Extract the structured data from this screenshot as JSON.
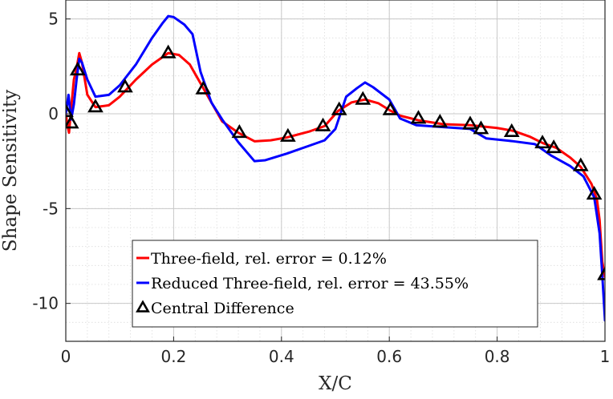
{
  "chart_data": {
    "type": "line",
    "title": "",
    "xlabel": "X/C",
    "ylabel": "Shape Sensitivity",
    "xlim": [
      0,
      1
    ],
    "ylim": [
      -12,
      6
    ],
    "x_ticks": [
      0,
      0.2,
      0.4,
      0.6,
      0.8,
      1
    ],
    "x_tick_labels": [
      "0",
      "0.2",
      "0.4",
      "0.6",
      "0.8",
      "1"
    ],
    "y_ticks": [
      5,
      0,
      -5,
      -10
    ],
    "y_tick_labels": [
      "5",
      "0",
      "-5",
      "-10"
    ],
    "grid": true,
    "minor_grid": true,
    "legend_position": "bottom-center",
    "series": [
      {
        "name": "Three-field, rel. error = 0.12%",
        "color": "#ff0000",
        "marker": "none",
        "points": [
          [
            0.0,
            0.0
          ],
          [
            0.003,
            -0.6
          ],
          [
            0.006,
            -1.0
          ],
          [
            0.01,
            0.3
          ],
          [
            0.015,
            1.8
          ],
          [
            0.02,
            2.4
          ],
          [
            0.025,
            3.2
          ],
          [
            0.03,
            2.7
          ],
          [
            0.04,
            1.0
          ],
          [
            0.055,
            0.35
          ],
          [
            0.08,
            0.45
          ],
          [
            0.1,
            0.9
          ],
          [
            0.13,
            1.8
          ],
          [
            0.16,
            2.6
          ],
          [
            0.19,
            3.2
          ],
          [
            0.21,
            3.1
          ],
          [
            0.23,
            2.6
          ],
          [
            0.26,
            1.1
          ],
          [
            0.29,
            -0.4
          ],
          [
            0.32,
            -1.0
          ],
          [
            0.35,
            -1.45
          ],
          [
            0.38,
            -1.4
          ],
          [
            0.41,
            -1.25
          ],
          [
            0.45,
            -0.95
          ],
          [
            0.48,
            -0.65
          ],
          [
            0.505,
            0.15
          ],
          [
            0.53,
            0.6
          ],
          [
            0.555,
            0.75
          ],
          [
            0.58,
            0.55
          ],
          [
            0.6,
            0.2
          ],
          [
            0.62,
            -0.1
          ],
          [
            0.655,
            -0.35
          ],
          [
            0.7,
            -0.55
          ],
          [
            0.75,
            -0.6
          ],
          [
            0.8,
            -0.75
          ],
          [
            0.83,
            -0.9
          ],
          [
            0.86,
            -1.2
          ],
          [
            0.885,
            -1.55
          ],
          [
            0.91,
            -1.8
          ],
          [
            0.935,
            -2.3
          ],
          [
            0.955,
            -2.8
          ],
          [
            0.975,
            -3.7
          ],
          [
            0.985,
            -4.5
          ],
          [
            0.99,
            -5.6
          ],
          [
            0.995,
            -7.8
          ],
          [
            1.0,
            -8.6
          ]
        ]
      },
      {
        "name": "Reduced Three-field, rel. error = 43.55%",
        "color": "#0000ff",
        "marker": "none",
        "points": [
          [
            0.0,
            0.0
          ],
          [
            0.005,
            1.0
          ],
          [
            0.01,
            -0.3
          ],
          [
            0.015,
            0.5
          ],
          [
            0.02,
            1.8
          ],
          [
            0.025,
            2.9
          ],
          [
            0.03,
            2.7
          ],
          [
            0.04,
            1.8
          ],
          [
            0.055,
            0.9
          ],
          [
            0.08,
            1.0
          ],
          [
            0.1,
            1.5
          ],
          [
            0.13,
            2.6
          ],
          [
            0.16,
            4.0
          ],
          [
            0.18,
            4.8
          ],
          [
            0.19,
            5.15
          ],
          [
            0.2,
            5.1
          ],
          [
            0.22,
            4.7
          ],
          [
            0.235,
            4.2
          ],
          [
            0.25,
            2.2
          ],
          [
            0.27,
            0.6
          ],
          [
            0.29,
            -0.3
          ],
          [
            0.32,
            -1.5
          ],
          [
            0.35,
            -2.5
          ],
          [
            0.37,
            -2.45
          ],
          [
            0.41,
            -2.1
          ],
          [
            0.45,
            -1.7
          ],
          [
            0.48,
            -1.4
          ],
          [
            0.5,
            -0.8
          ],
          [
            0.52,
            0.9
          ],
          [
            0.54,
            1.35
          ],
          [
            0.555,
            1.65
          ],
          [
            0.57,
            1.4
          ],
          [
            0.6,
            0.75
          ],
          [
            0.62,
            -0.25
          ],
          [
            0.65,
            -0.6
          ],
          [
            0.7,
            -0.7
          ],
          [
            0.75,
            -0.8
          ],
          [
            0.78,
            -1.3
          ],
          [
            0.83,
            -1.45
          ],
          [
            0.87,
            -1.6
          ],
          [
            0.9,
            -2.2
          ],
          [
            0.935,
            -2.75
          ],
          [
            0.96,
            -3.3
          ],
          [
            0.98,
            -4.4
          ],
          [
            0.99,
            -6.3
          ],
          [
            0.995,
            -8.5
          ],
          [
            1.0,
            -10.9
          ]
        ]
      },
      {
        "name": "Central Difference",
        "color": "#000000",
        "marker": "triangle",
        "points": [
          [
            0.0,
            0.1
          ],
          [
            0.01,
            -0.5
          ],
          [
            0.022,
            2.3
          ],
          [
            0.055,
            0.35
          ],
          [
            0.11,
            1.4
          ],
          [
            0.19,
            3.2
          ],
          [
            0.255,
            1.3
          ],
          [
            0.322,
            -1.0
          ],
          [
            0.412,
            -1.2
          ],
          [
            0.477,
            -0.65
          ],
          [
            0.507,
            0.2
          ],
          [
            0.551,
            0.75
          ],
          [
            0.602,
            0.2
          ],
          [
            0.654,
            -0.25
          ],
          [
            0.694,
            -0.45
          ],
          [
            0.75,
            -0.55
          ],
          [
            0.77,
            -0.8
          ],
          [
            0.827,
            -0.95
          ],
          [
            0.884,
            -1.55
          ],
          [
            0.905,
            -1.8
          ],
          [
            0.955,
            -2.75
          ],
          [
            0.98,
            -4.25
          ],
          [
            1.0,
            -8.5
          ]
        ]
      }
    ]
  }
}
